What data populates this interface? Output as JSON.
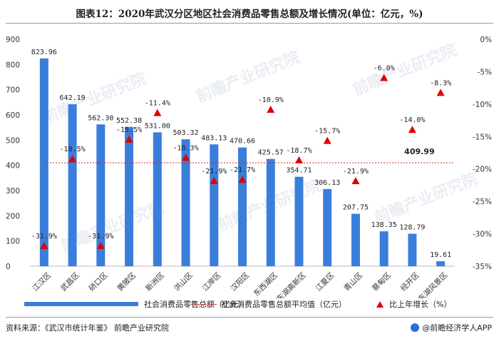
{
  "title": "图表12：2020年武汉分区地区社会消费品零售总额及增长情况(单位：亿元，%)",
  "chart_data": {
    "type": "bar",
    "categories": [
      "江汉区",
      "武昌区",
      "硚口区",
      "黄陂区",
      "新洲区",
      "洪山区",
      "江岸区",
      "汉阳区",
      "东西湖区",
      "东湖高新区",
      "江夏区",
      "青山区",
      "蔡甸区",
      "经开区",
      "东湖风景区"
    ],
    "series": [
      {
        "name": "社会消费品零售总额（亿元）",
        "type": "bar",
        "axis": "left",
        "values": [
          823.96,
          642.19,
          562.3,
          552.38,
          531.0,
          503.32,
          483.13,
          470.66,
          425.57,
          354.71,
          306.13,
          207.75,
          138.35,
          128.79,
          19.61
        ],
        "labels": [
          "823.96",
          "642.19",
          "562.30",
          "552.38",
          "531.00",
          "503.32",
          "483.13",
          "470.66",
          "425.57",
          "354.71",
          "306.13",
          "207.75",
          "138.35",
          "128.79",
          "19.61"
        ]
      },
      {
        "name": "比上年增长（%）",
        "type": "scatter",
        "axis": "right",
        "values": [
          -31.9,
          -18.5,
          -31.9,
          -15.5,
          -11.4,
          -18.3,
          -21.9,
          -21.7,
          -10.9,
          -18.7,
          -15.7,
          -21.9,
          -6.0,
          -14.0,
          -8.3
        ],
        "labels": [
          "-31.9%",
          "-18.5%",
          "-31.9%",
          "-15.5%",
          "-11.4%",
          "-18.3%",
          "-21.9%",
          "-21.7%",
          "-10.9%",
          "-18.7%",
          "-15.7%",
          "-21.9%",
          "-6.0%",
          "-14.0%",
          "-8.3%"
        ]
      }
    ],
    "average": {
      "name": "社会消费品零售总额平均值（亿元）",
      "value": 409.99,
      "label": "409.99"
    },
    "y_left": {
      "ylim": [
        0,
        900
      ],
      "ticks": [
        "0",
        "100",
        "200",
        "300",
        "400",
        "500",
        "600",
        "700",
        "800",
        "900"
      ]
    },
    "y_right": {
      "ylim": [
        -35,
        0
      ],
      "ticks": [
        "0%",
        "-5%",
        "-10%",
        "-15%",
        "-20%",
        "-25%",
        "-30%",
        "-35%"
      ]
    },
    "colors": {
      "bar": "#3A7EDB",
      "avg_line": "#E02020",
      "marker": "#E00000"
    },
    "legend_position": "bottom"
  },
  "legend": {
    "bar_label": "社会消费品零售总额（亿元）",
    "line_label": "社会消费品零售总额平均值（亿元）",
    "marker_label": "比上年增长（%）"
  },
  "footer": {
    "source": "资料来源：《武汉市统计年鉴》 前瞻产业研究院",
    "brand": "@前瞻经济学人APP"
  },
  "watermark_text": "前瞻产业研究院"
}
